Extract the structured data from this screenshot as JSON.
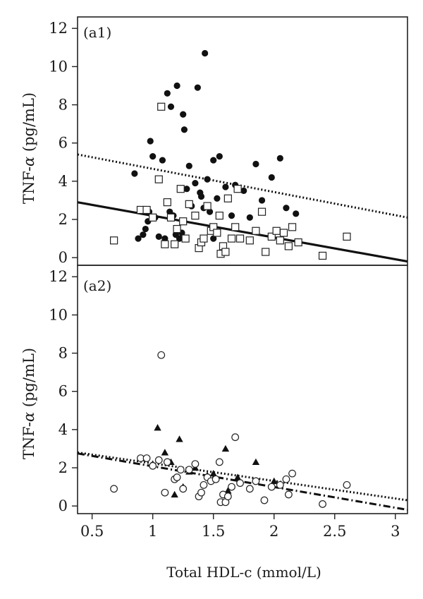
{
  "chart_data": {
    "type": "scatter",
    "xlabel": "Total HDL-c (mmol/L)",
    "xlim": [
      0.38,
      3.1
    ],
    "xticks": [
      0.5,
      1,
      1.5,
      2,
      2.5,
      3
    ],
    "xtick_labels": [
      "0.5",
      "1",
      "1.5",
      "2",
      "2.5",
      "3"
    ],
    "panels": [
      {
        "label": "(a1)",
        "ylabel_main": "TNF-",
        "ylabel_greek": "α",
        "ylabel_unit": " (pg/mL)",
        "ylim": [
          -0.4,
          12.6
        ],
        "yticks": [
          0,
          2,
          4,
          6,
          8,
          10,
          12
        ],
        "ytick_labels": [
          "0",
          "2",
          "4",
          "6",
          "8",
          "10",
          "12"
        ],
        "series": [
          {
            "marker": "filled-circle",
            "points": [
              [
                0.85,
                4.4
              ],
              [
                0.88,
                1.0
              ],
              [
                0.92,
                1.2
              ],
              [
                0.94,
                1.5
              ],
              [
                0.96,
                1.9
              ],
              [
                0.97,
                2.4
              ],
              [
                0.98,
                6.1
              ],
              [
                1.0,
                5.3
              ],
              [
                1.02,
                2.1
              ],
              [
                1.05,
                1.1
              ],
              [
                1.08,
                5.1
              ],
              [
                1.1,
                1.0
              ],
              [
                1.12,
                8.6
              ],
              [
                1.14,
                2.4
              ],
              [
                1.15,
                7.9
              ],
              [
                1.17,
                2.2
              ],
              [
                1.19,
                1.2
              ],
              [
                1.2,
                9.0
              ],
              [
                1.22,
                1.0
              ],
              [
                1.24,
                1.3
              ],
              [
                1.25,
                7.5
              ],
              [
                1.26,
                6.7
              ],
              [
                1.28,
                3.6
              ],
              [
                1.3,
                4.8
              ],
              [
                1.32,
                2.7
              ],
              [
                1.35,
                3.9
              ],
              [
                1.37,
                8.9
              ],
              [
                1.39,
                3.4
              ],
              [
                1.4,
                3.2
              ],
              [
                1.42,
                2.6
              ],
              [
                1.43,
                10.7
              ],
              [
                1.45,
                4.1
              ],
              [
                1.47,
                2.4
              ],
              [
                1.5,
                5.1
              ],
              [
                1.5,
                1.0
              ],
              [
                1.53,
                3.1
              ],
              [
                1.55,
                5.3
              ],
              [
                1.58,
                0.6
              ],
              [
                1.6,
                3.7
              ],
              [
                1.65,
                2.2
              ],
              [
                1.68,
                3.8
              ],
              [
                1.75,
                3.5
              ],
              [
                1.8,
                2.1
              ],
              [
                1.85,
                4.9
              ],
              [
                1.9,
                3.0
              ],
              [
                1.98,
                4.2
              ],
              [
                2.05,
                5.2
              ],
              [
                2.1,
                2.6
              ],
              [
                2.18,
                2.3
              ]
            ]
          },
          {
            "marker": "open-square",
            "points": [
              [
                0.68,
                0.9
              ],
              [
                0.9,
                2.5
              ],
              [
                0.95,
                2.5
              ],
              [
                1.0,
                2.1
              ],
              [
                1.05,
                4.1
              ],
              [
                1.07,
                7.9
              ],
              [
                1.1,
                0.7
              ],
              [
                1.12,
                2.9
              ],
              [
                1.15,
                2.1
              ],
              [
                1.18,
                0.7
              ],
              [
                1.2,
                1.5
              ],
              [
                1.23,
                3.6
              ],
              [
                1.25,
                1.9
              ],
              [
                1.27,
                1.0
              ],
              [
                1.3,
                2.8
              ],
              [
                1.35,
                2.2
              ],
              [
                1.38,
                0.5
              ],
              [
                1.4,
                0.8
              ],
              [
                1.42,
                1.0
              ],
              [
                1.45,
                2.7
              ],
              [
                1.48,
                1.4
              ],
              [
                1.5,
                1.6
              ],
              [
                1.53,
                1.3
              ],
              [
                1.55,
                2.2
              ],
              [
                1.56,
                0.2
              ],
              [
                1.58,
                0.6
              ],
              [
                1.6,
                0.3
              ],
              [
                1.62,
                3.1
              ],
              [
                1.65,
                1.0
              ],
              [
                1.68,
                1.6
              ],
              [
                1.7,
                3.6
              ],
              [
                1.72,
                1.0
              ],
              [
                1.8,
                0.9
              ],
              [
                1.85,
                1.4
              ],
              [
                1.9,
                2.4
              ],
              [
                1.93,
                0.3
              ],
              [
                1.98,
                1.1
              ],
              [
                2.02,
                1.4
              ],
              [
                2.05,
                0.9
              ],
              [
                2.08,
                1.3
              ],
              [
                2.12,
                0.6
              ],
              [
                2.15,
                1.6
              ],
              [
                2.2,
                0.8
              ],
              [
                2.4,
                0.1
              ],
              [
                2.6,
                1.1
              ]
            ]
          }
        ],
        "lines": [
          {
            "style": "dotted",
            "x": [
              0.38,
              3.1
            ],
            "y": [
              5.4,
              2.1
            ]
          },
          {
            "style": "solid",
            "x": [
              0.38,
              3.1
            ],
            "y": [
              2.9,
              -0.2
            ]
          }
        ]
      },
      {
        "label": "(a2)",
        "ylabel_main": "TNF-",
        "ylabel_greek": "α",
        "ylabel_unit": " (pg/mL)",
        "ylim": [
          -0.4,
          12.6
        ],
        "yticks": [
          0,
          2,
          4,
          6,
          8,
          10,
          12
        ],
        "ytick_labels": [
          "0",
          "2",
          "4",
          "6",
          "8",
          "10",
          "12"
        ],
        "series": [
          {
            "marker": "filled-triangle",
            "points": [
              [
                0.9,
                2.5
              ],
              [
                1.0,
                2.2
              ],
              [
                1.04,
                4.1
              ],
              [
                1.1,
                2.8
              ],
              [
                1.15,
                2.3
              ],
              [
                1.18,
                0.6
              ],
              [
                1.22,
                3.5
              ],
              [
                1.25,
                1.0
              ],
              [
                1.3,
                1.8
              ],
              [
                1.35,
                2.0
              ],
              [
                1.45,
                1.6
              ],
              [
                1.5,
                1.7
              ],
              [
                1.6,
                3.0
              ],
              [
                1.62,
                0.8
              ],
              [
                1.7,
                1.5
              ],
              [
                1.85,
                2.3
              ],
              [
                2.0,
                1.3
              ]
            ]
          },
          {
            "marker": "open-circle",
            "points": [
              [
                0.68,
                0.9
              ],
              [
                0.9,
                2.5
              ],
              [
                0.95,
                2.5
              ],
              [
                1.0,
                2.1
              ],
              [
                1.05,
                2.4
              ],
              [
                1.07,
                7.9
              ],
              [
                1.1,
                0.7
              ],
              [
                1.12,
                2.3
              ],
              [
                1.18,
                1.4
              ],
              [
                1.2,
                1.5
              ],
              [
                1.23,
                1.9
              ],
              [
                1.25,
                0.9
              ],
              [
                1.3,
                1.9
              ],
              [
                1.35,
                2.2
              ],
              [
                1.38,
                0.5
              ],
              [
                1.4,
                0.7
              ],
              [
                1.42,
                1.1
              ],
              [
                1.45,
                1.5
              ],
              [
                1.48,
                1.3
              ],
              [
                1.52,
                1.4
              ],
              [
                1.55,
                2.3
              ],
              [
                1.56,
                0.2
              ],
              [
                1.58,
                0.6
              ],
              [
                1.6,
                0.2
              ],
              [
                1.62,
                0.5
              ],
              [
                1.65,
                1.0
              ],
              [
                1.68,
                3.6
              ],
              [
                1.72,
                1.2
              ],
              [
                1.8,
                0.9
              ],
              [
                1.85,
                1.3
              ],
              [
                1.92,
                0.3
              ],
              [
                1.98,
                1.0
              ],
              [
                2.05,
                1.1
              ],
              [
                2.1,
                1.4
              ],
              [
                2.12,
                0.6
              ],
              [
                2.15,
                1.7
              ],
              [
                2.4,
                0.1
              ],
              [
                2.6,
                1.1
              ]
            ]
          }
        ],
        "lines": [
          {
            "style": "dotted",
            "x": [
              0.38,
              3.1
            ],
            "y": [
              2.8,
              0.3
            ]
          },
          {
            "style": "dashdot",
            "x": [
              0.38,
              3.1
            ],
            "y": [
              2.75,
              -0.2
            ]
          }
        ]
      }
    ]
  }
}
